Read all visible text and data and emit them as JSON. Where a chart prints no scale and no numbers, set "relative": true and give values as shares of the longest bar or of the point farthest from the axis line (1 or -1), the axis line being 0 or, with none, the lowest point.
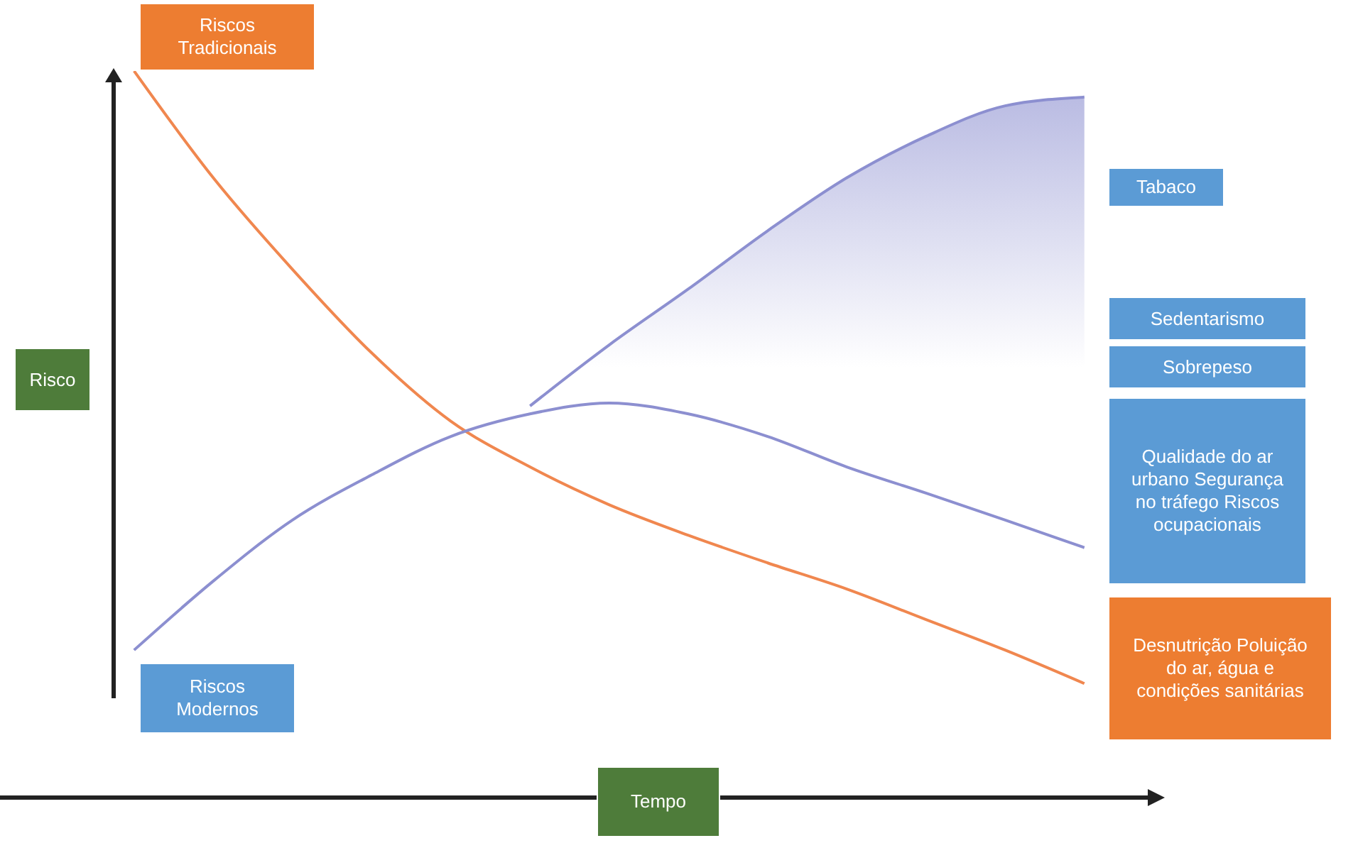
{
  "chart_data": {
    "type": "line",
    "relative": true,
    "xlabel": "Tempo",
    "ylabel": "Risco",
    "grid": false,
    "categories": [
      null,
      null,
      null,
      null,
      null,
      null,
      null,
      null,
      null,
      null,
      null,
      null,
      null
    ],
    "series": [
      {
        "name": "Riscos Tradicionais",
        "color": "#f0874f",
        "values": [
          1,
          0.853,
          0.727,
          0.612,
          0.518,
          0.455,
          0.403,
          0.361,
          0.323,
          0.287,
          0.245,
          0.203,
          0.157
        ]
      },
      {
        "name": "Riscos Modernos",
        "color": "#8c8fd0",
        "values": [
          0.203,
          0.298,
          0.382,
          0.444,
          0.497,
          0.528,
          0.543,
          0.528,
          0.497,
          0.455,
          0.419,
          0.382,
          0.344
        ]
      },
      {
        "color": "#8c8fd0",
        "values": [
          null,
          null,
          null,
          null,
          null,
          0.539,
          0.623,
          0.7,
          0.78,
          0.853,
          0.91,
          0.952,
          0.964
        ],
        "lower": [
          null,
          null,
          null,
          null,
          null,
          0.528,
          0.543,
          0.528,
          0.497,
          0.455,
          0.419,
          0.382,
          0.344
        ],
        "upper": [
          null,
          null,
          null,
          null,
          null,
          0.539,
          0.623,
          0.7,
          0.78,
          0.853,
          0.91,
          0.952,
          0.964
        ]
      }
    ],
    "annotations": [
      "Tabaco",
      "Sedentarismo",
      "Sobrepeso",
      "Qualidade do ar urbano Segurança no tráfego Riscos ocupacionais",
      "Desnutrição Poluição do ar, água e condições sanitárias"
    ]
  }
}
